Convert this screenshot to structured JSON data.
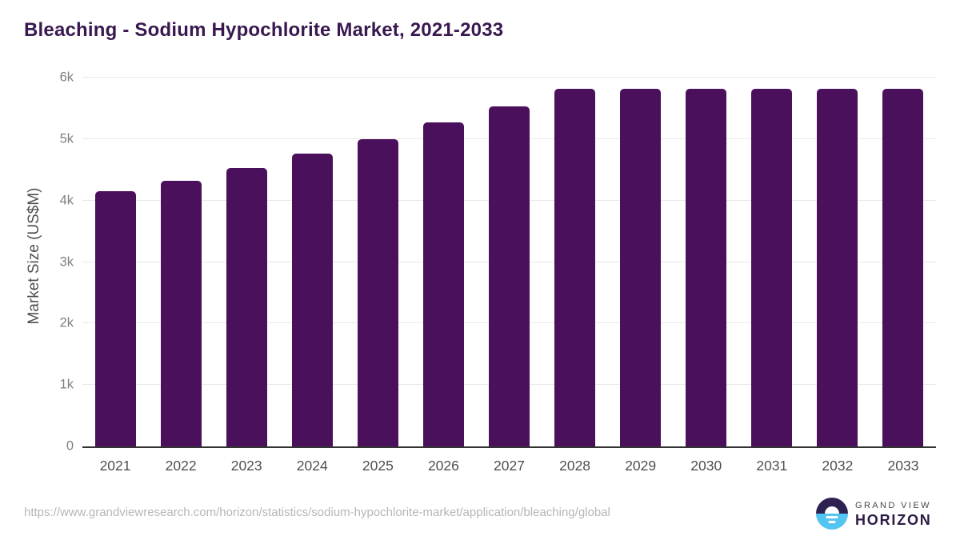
{
  "footer": {
    "source_url": "https://www.grandviewresearch.com/horizon/statistics/sodium-hypochlorite-market/application/bleaching/global",
    "brand_line1": "GRAND VIEW",
    "brand_line2": "HORIZON"
  },
  "colors": {
    "bar": "#4a105c",
    "title": "#38184e",
    "gridline": "#e8e8e8",
    "baseline": "#333333",
    "x_label": "#4f4f4f",
    "y_tick": "#7f7f7f",
    "axis_title": "#4f4f4f",
    "url": "#b6b6b6",
    "logo_dark": "#2e2151",
    "logo_blue": "#54c4f0",
    "brand_top_text": "#4b4650",
    "brand_bottom_text": "#2c1a45"
  },
  "chart_data": {
    "type": "bar",
    "title": "Bleaching - Sodium Hypochlorite Market, 2021-2033",
    "xlabel": "",
    "ylabel": "Market Size (US$M)",
    "categories": [
      "2021",
      "2022",
      "2023",
      "2024",
      "2025",
      "2026",
      "2027",
      "2028",
      "2029",
      "2030",
      "2031",
      "2032",
      "2033"
    ],
    "values": [
      4150,
      4320,
      4530,
      4770,
      5000,
      5270,
      5530,
      5820,
      5820,
      5820,
      5820,
      5820,
      5820
    ],
    "ylim": [
      0,
      6000
    ],
    "yticks": [
      {
        "value": 6000,
        "label": "6k"
      },
      {
        "value": 5000,
        "label": "5k"
      },
      {
        "value": 4000,
        "label": "4k"
      },
      {
        "value": 3000,
        "label": "3k"
      },
      {
        "value": 2000,
        "label": "2k"
      },
      {
        "value": 1000,
        "label": "1k"
      },
      {
        "value": 0,
        "label": "0"
      }
    ],
    "grid": true,
    "legend": false,
    "bar_color": "#4a105c"
  }
}
